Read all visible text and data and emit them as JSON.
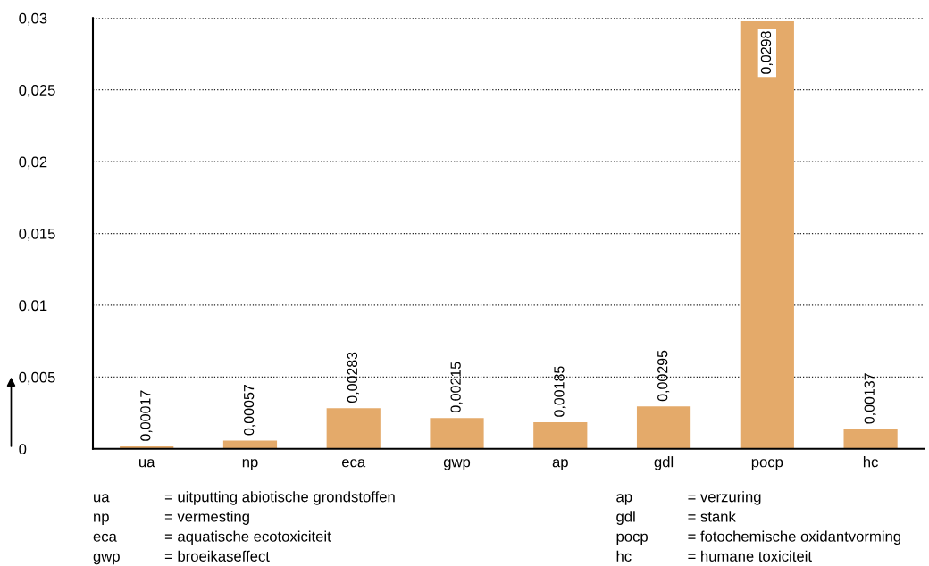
{
  "chart_data": {
    "type": "bar",
    "categories": [
      "ua",
      "np",
      "eca",
      "gwp",
      "ap",
      "gdl",
      "pocp",
      "hc"
    ],
    "values": [
      0.00017,
      0.00057,
      0.00283,
      0.00215,
      0.00185,
      0.00295,
      0.0298,
      0.00137
    ],
    "value_labels": [
      "0,00017",
      "0,00057",
      "0,00283",
      "0,00215",
      "0,00185",
      "0,00295",
      "0,0298",
      "0,00137"
    ],
    "color": "#e4aa6a",
    "ylim": [
      0,
      0.03
    ],
    "yticks": [
      {
        "value": 0,
        "label": "0"
      },
      {
        "value": 0.005,
        "label": "0,005"
      },
      {
        "value": 0.01,
        "label": "0,01"
      },
      {
        "value": 0.015,
        "label": "0,015"
      },
      {
        "value": 0.02,
        "label": "0,02"
      },
      {
        "value": 0.025,
        "label": "0,025"
      },
      {
        "value": 0.03,
        "label": "0,03"
      }
    ],
    "grid": "y",
    "line_style": "dotted",
    "annotations": [
      "ua = uitputting abiotische grondstoffen",
      "np = vermesting",
      "eca = aquatische ecotoxiciteit",
      "gwp = broeikaseffect",
      "ap = verzuring",
      "gdl = stank",
      "pocp = fotochemische oxidantvorming",
      "hc = humane toxiciteit"
    ]
  }
}
